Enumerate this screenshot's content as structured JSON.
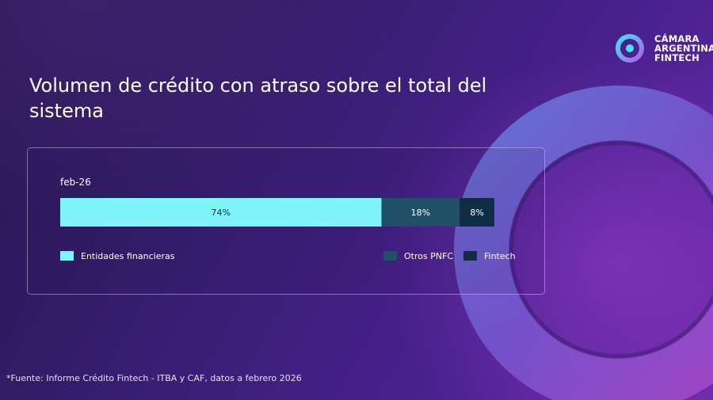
{
  "brand": {
    "name_lines": [
      "CÁMARA",
      "ARGENTINA",
      "FINTECH"
    ],
    "logo_icon": "ring-logo-icon"
  },
  "title": "Volumen de crédito con atraso sobre el total del sistema",
  "footnote": "*Fuente: Informe Crédito Fintech - ITBA y CAF, datos a febrero 2026",
  "colors": {
    "entidades": "#7ff5fa",
    "otros": "#1f5068",
    "fintech": "#0f2c45",
    "panel_border": "#c8bee6"
  },
  "chart_data": {
    "type": "bar",
    "orientation": "horizontal-stacked",
    "categories": [
      "feb-26"
    ],
    "unit": "%",
    "series": [
      {
        "name": "Entidades financieras",
        "values": [
          74
        ],
        "label": "74%",
        "color": "#7ff5fa"
      },
      {
        "name": "Otros PNFC",
        "values": [
          18
        ],
        "label": "18%",
        "color": "#1f5068"
      },
      {
        "name": "Fintech",
        "values": [
          8
        ],
        "label": "8%",
        "color": "#0f2c45"
      }
    ],
    "xlim": [
      0,
      100
    ],
    "grid": false,
    "legend": "bottom"
  }
}
